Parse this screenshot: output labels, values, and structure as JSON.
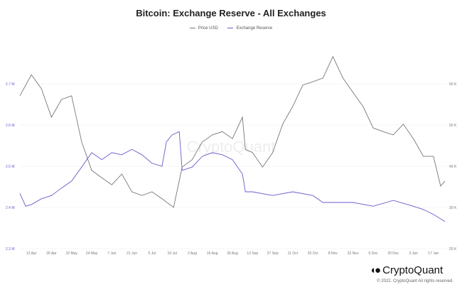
{
  "chart_data": {
    "type": "line",
    "title": "Bitcoin: Exchange Reserve - All Exchanges",
    "watermark": "CryptoQuant",
    "legend_placement": "top",
    "grid": true,
    "x_ticks": [
      "12 Apr",
      "26 Apr",
      "10 May",
      "24 May",
      "7 Jun",
      "21 Jun",
      "5 Jul",
      "19 Jul",
      "2 Aug",
      "16 Aug",
      "30 Aug",
      "13 Sep",
      "27 Sep",
      "11 Oct",
      "25 Oct",
      "8 Nov",
      "22 Nov",
      "6 Dec",
      "20 Dec",
      "3 Jan",
      "17 Jan"
    ],
    "x_range": [
      "2021-04-04",
      "2022-01-26"
    ],
    "y_left": {
      "ticks": [
        "2.3 M",
        "2.4 M",
        "2.5 M",
        "2.6 M",
        "2.7 M"
      ],
      "range": [
        2.3,
        2.75
      ],
      "unit": "M",
      "color": "#6a5acd"
    },
    "y_right": {
      "ticks": [
        "20 K",
        "30 K",
        "40 K",
        "50 K",
        "60 K"
      ],
      "range": [
        20,
        68
      ],
      "unit": "K",
      "color": "#777777"
    },
    "series": [
      {
        "name": "Price USD",
        "axis": "right",
        "color": "#777777",
        "dates": [
          "2021-04-04",
          "2021-04-12",
          "2021-04-19",
          "2021-04-26",
          "2021-05-03",
          "2021-05-10",
          "2021-05-17",
          "2021-05-24",
          "2021-05-31",
          "2021-06-07",
          "2021-06-14",
          "2021-06-21",
          "2021-06-28",
          "2021-07-05",
          "2021-07-12",
          "2021-07-20",
          "2021-07-26",
          "2021-08-02",
          "2021-08-09",
          "2021-08-16",
          "2021-08-23",
          "2021-08-30",
          "2021-09-06",
          "2021-09-08",
          "2021-09-13",
          "2021-09-20",
          "2021-09-27",
          "2021-10-04",
          "2021-10-11",
          "2021-10-18",
          "2021-10-25",
          "2021-11-01",
          "2021-11-08",
          "2021-11-15",
          "2021-11-22",
          "2021-11-29",
          "2021-12-06",
          "2021-12-13",
          "2021-12-20",
          "2021-12-27",
          "2022-01-03",
          "2022-01-10",
          "2022-01-17",
          "2022-01-22",
          "2022-01-25"
        ],
        "values": [
          57.1,
          62.2,
          58.8,
          51.9,
          56.2,
          57.1,
          45.9,
          39.0,
          37.2,
          35.5,
          38.1,
          33.8,
          32.9,
          33.8,
          32.1,
          30.0,
          39.8,
          41.6,
          45.9,
          47.6,
          48.4,
          46.7,
          51.9,
          44.1,
          43.3,
          39.8,
          43.3,
          50.2,
          54.5,
          59.7,
          60.5,
          61.4,
          66.6,
          61.4,
          57.9,
          54.5,
          49.3,
          48.4,
          47.6,
          50.2,
          46.7,
          42.4,
          42.4,
          35.2,
          36.4
        ]
      },
      {
        "name": "Exchange Reserve",
        "axis": "left",
        "color": "#6a5acd",
        "dates": [
          "2021-04-04",
          "2021-04-08",
          "2021-04-12",
          "2021-04-19",
          "2021-04-26",
          "2021-05-03",
          "2021-05-10",
          "2021-05-17",
          "2021-05-24",
          "2021-05-31",
          "2021-06-07",
          "2021-06-14",
          "2021-06-21",
          "2021-06-28",
          "2021-07-05",
          "2021-07-12",
          "2021-07-15",
          "2021-07-19",
          "2021-07-24",
          "2021-07-26",
          "2021-08-02",
          "2021-08-09",
          "2021-08-16",
          "2021-08-23",
          "2021-08-30",
          "2021-09-06",
          "2021-09-08",
          "2021-09-13",
          "2021-09-27",
          "2021-10-11",
          "2021-10-25",
          "2021-11-01",
          "2021-11-08",
          "2021-11-22",
          "2021-12-06",
          "2021-12-20",
          "2022-01-03",
          "2022-01-10",
          "2022-01-17",
          "2022-01-25"
        ],
        "values": [
          2.434,
          2.403,
          2.407,
          2.421,
          2.429,
          2.447,
          2.464,
          2.498,
          2.533,
          2.516,
          2.533,
          2.528,
          2.541,
          2.528,
          2.507,
          2.5,
          2.559,
          2.576,
          2.584,
          2.49,
          2.498,
          2.524,
          2.533,
          2.528,
          2.516,
          2.481,
          2.438,
          2.438,
          2.429,
          2.438,
          2.429,
          2.412,
          2.412,
          2.412,
          2.403,
          2.417,
          2.403,
          2.395,
          2.383,
          2.366
        ]
      }
    ]
  },
  "footer": {
    "brand": "CryptoQuant",
    "copyright": "© 2022. CryptoQuant All rights reserved."
  }
}
